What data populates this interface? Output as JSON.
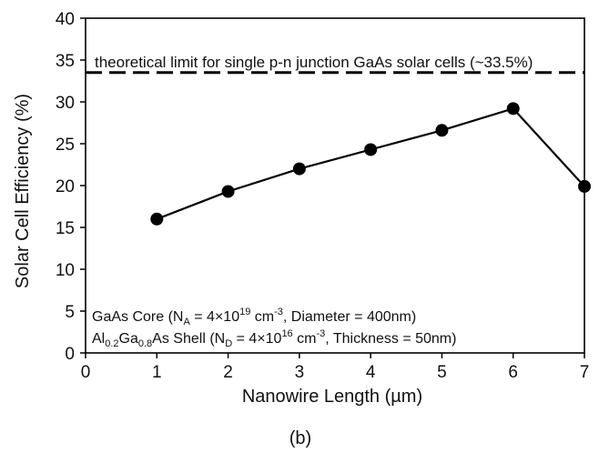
{
  "chart_data": {
    "type": "line",
    "xlabel_prefix": "Nanowire Length (",
    "xlabel_unit": "µm",
    "xlabel_suffix": ")",
    "ylabel": "Solar Cell Efficiency (%)",
    "xlim": [
      0,
      7
    ],
    "ylim": [
      0,
      40
    ],
    "x_ticks": [
      "0",
      "1",
      "2",
      "3",
      "4",
      "5",
      "6",
      "7"
    ],
    "y_ticks": [
      "0",
      "5",
      "10",
      "15",
      "20",
      "25",
      "30",
      "35",
      "40"
    ],
    "grid": false,
    "legend": "none",
    "series": [
      {
        "x": [
          1,
          2,
          3,
          4,
          5,
          6,
          7
        ],
        "y": [
          16.0,
          19.3,
          22.0,
          24.3,
          26.6,
          29.2,
          19.9
        ],
        "color": "#000000",
        "marker": "circle"
      }
    ],
    "reference_line": {
      "y": 33.5,
      "style": "dashed",
      "label": "theoretical limit for single p-n junction  GaAs solar cells (~33.5%)"
    },
    "annotation_lines": [
      {
        "a": "GaAs Core (N",
        "a_sub": "A",
        "b": " = 4×10",
        "b_sup": "19",
        "c": " cm",
        "c_sup": "-3",
        "d": ", Diameter = 400nm)"
      },
      {
        "pre": "Al",
        "pre_sub": "0.2",
        "mid": "Ga",
        "mid_sub": "0.8",
        "a": "As Shell (N",
        "a_sub": "D",
        "b": " = 4×10",
        "b_sup": "16",
        "c": " cm",
        "c_sup": "-3",
        "d": ", Thickness = 50nm)"
      }
    ],
    "panel_label": "(b)"
  }
}
